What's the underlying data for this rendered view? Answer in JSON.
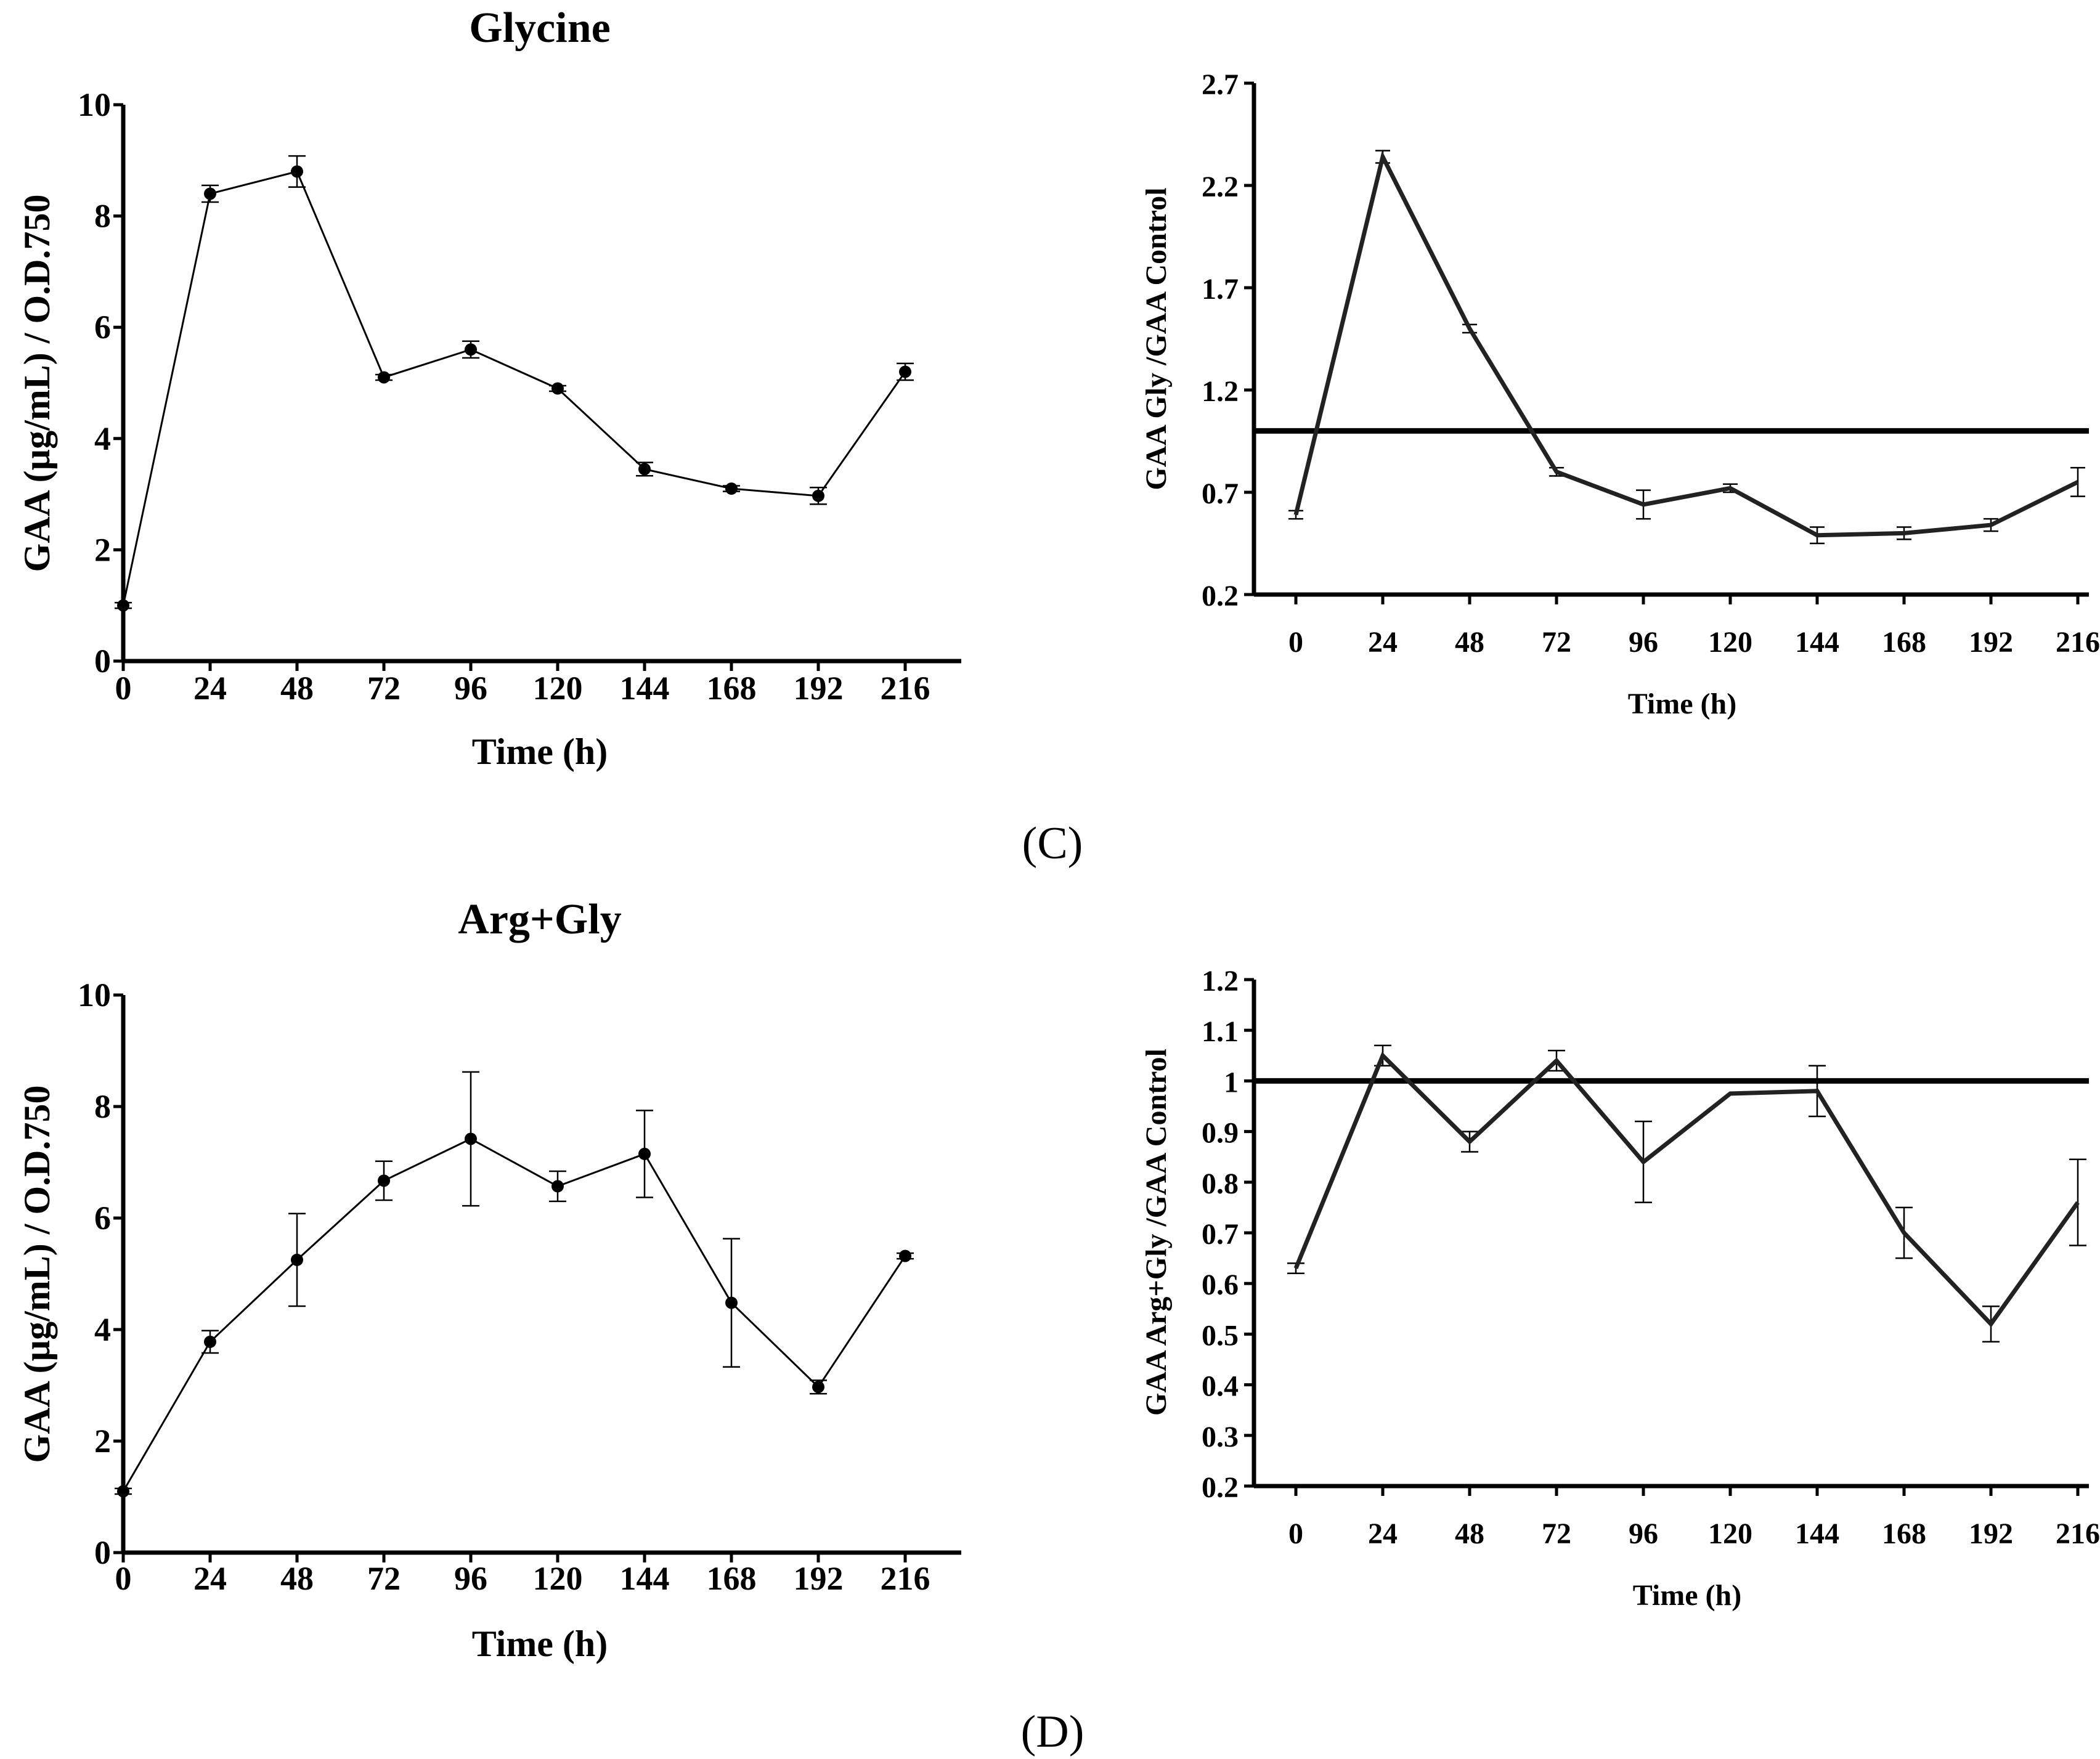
{
  "panel_labels": {
    "c": "(C)",
    "d": "(D)"
  },
  "chart_data": [
    {
      "id": "glycine-gaa",
      "type": "line",
      "title": "Glycine",
      "xlabel": "Time (h)",
      "ylabel": "GAA (µg/mL) / O.D.750",
      "x": [
        0,
        24,
        48,
        72,
        96,
        120,
        144,
        168,
        192,
        216
      ],
      "xticks": [
        "0",
        "24",
        "48",
        "72",
        "96",
        "120",
        "144",
        "168",
        "192",
        "216"
      ],
      "yticks": [
        "0",
        "2",
        "4",
        "6",
        "8",
        "10"
      ],
      "ylim": [
        0,
        10
      ],
      "series": [
        {
          "name": "Glycine",
          "values": [
            1.0,
            8.4,
            8.8,
            5.1,
            5.6,
            4.9,
            3.45,
            3.1,
            2.97,
            5.2
          ],
          "errors": [
            0.05,
            0.15,
            0.28,
            0.05,
            0.15,
            0.05,
            0.12,
            0.05,
            0.15,
            0.15
          ]
        }
      ],
      "reference_line": null
    },
    {
      "id": "glycine-ratio",
      "type": "line",
      "title": "",
      "xlabel": "Time (h)",
      "ylabel": "GAA Gly /GAA Control",
      "x": [
        0,
        24,
        48,
        72,
        96,
        120,
        144,
        168,
        192,
        216
      ],
      "xticks": [
        "0",
        "24",
        "48",
        "72",
        "96",
        "120",
        "144",
        "168",
        "192",
        "216"
      ],
      "yticks": [
        "0.2",
        "0.7",
        "1.2",
        "1.7",
        "2.2",
        "2.7"
      ],
      "ylim": [
        0.2,
        2.7
      ],
      "series": [
        {
          "name": "GAA Gly / GAA Control",
          "values": [
            0.59,
            2.34,
            1.5,
            0.8,
            0.64,
            0.72,
            0.49,
            0.5,
            0.54,
            0.75
          ],
          "errors": [
            0.02,
            0.03,
            0.02,
            0.02,
            0.07,
            0.02,
            0.04,
            0.03,
            0.03,
            0.07
          ]
        }
      ],
      "reference_line": 1.0
    },
    {
      "id": "arggly-gaa",
      "type": "line",
      "title": "Arg+Gly",
      "xlabel": "Time (h)",
      "ylabel": "GAA (µg/mL) / O.D.750",
      "x": [
        0,
        24,
        48,
        72,
        96,
        120,
        144,
        168,
        192,
        216
      ],
      "xticks": [
        "0",
        "24",
        "48",
        "72",
        "96",
        "120",
        "144",
        "168",
        "192",
        "216"
      ],
      "yticks": [
        "0",
        "2",
        "4",
        "6",
        "8",
        "10"
      ],
      "ylim": [
        0,
        10
      ],
      "series": [
        {
          "name": "Arg+Gly",
          "values": [
            1.1,
            3.78,
            5.25,
            6.67,
            7.42,
            6.57,
            7.15,
            4.48,
            2.97,
            5.32
          ],
          "errors": [
            0.05,
            0.2,
            0.83,
            0.35,
            1.2,
            0.27,
            0.78,
            1.15,
            0.12,
            0.05
          ]
        }
      ],
      "reference_line": null
    },
    {
      "id": "arggly-ratio",
      "type": "line",
      "title": "",
      "xlabel": "Time (h)",
      "ylabel": "GAA Arg+Gly /GAA Control",
      "x": [
        0,
        24,
        48,
        72,
        96,
        120,
        144,
        168,
        192,
        216
      ],
      "xticks": [
        "0",
        "24",
        "48",
        "72",
        "96",
        "120",
        "144",
        "168",
        "192",
        "216"
      ],
      "yticks": [
        "0.2",
        "0.3",
        "0.4",
        "0.5",
        "0.6",
        "0.7",
        "0.8",
        "0.9",
        "1",
        "1.1",
        "1.2"
      ],
      "ylim": [
        0.2,
        1.2
      ],
      "series": [
        {
          "name": "GAA Arg+Gly / GAA Control",
          "values": [
            0.63,
            1.05,
            0.88,
            1.04,
            0.84,
            0.975,
            0.98,
            0.7,
            0.52,
            0.76
          ],
          "errors": [
            0.01,
            0.02,
            0.02,
            0.02,
            0.08,
            0.0,
            0.05,
            0.05,
            0.035,
            0.085
          ]
        }
      ],
      "reference_line": 1.0
    }
  ]
}
